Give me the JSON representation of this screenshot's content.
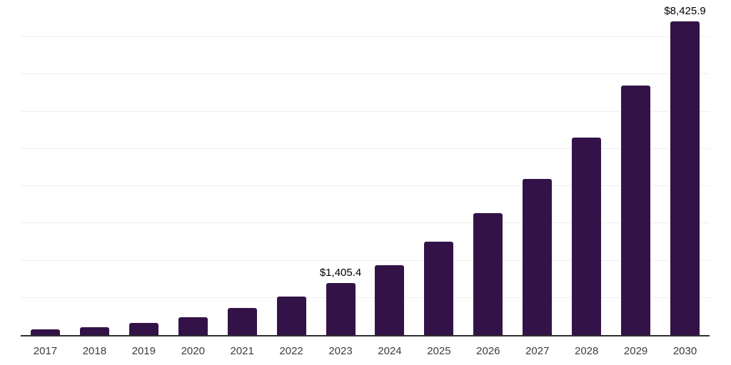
{
  "colors": {
    "bar_fill": "#331347",
    "gridline": "#efefef",
    "axis_line": "#2e2e2e",
    "tick_label": "#3d3d3d",
    "data_label": "#000000",
    "background": "#ffffff"
  },
  "chart_data": {
    "type": "bar",
    "categories": [
      "2017",
      "2018",
      "2019",
      "2020",
      "2021",
      "2022",
      "2023",
      "2024",
      "2025",
      "2026",
      "2027",
      "2028",
      "2029",
      "2030"
    ],
    "values": [
      150,
      215,
      330,
      480,
      720,
      1030,
      1405.4,
      1880,
      2500,
      3280,
      4200,
      5310,
      6700,
      8425.9
    ],
    "point_labels": {
      "2023": "$1,405.4",
      "2030": "$8,425.9"
    },
    "ylim": [
      0,
      9000
    ],
    "gridline_interval": 1000,
    "grid": true,
    "legend": false,
    "y_axis_tick_labels_visible": false,
    "value_unit": "USD (millions, implied by $ labels)"
  }
}
